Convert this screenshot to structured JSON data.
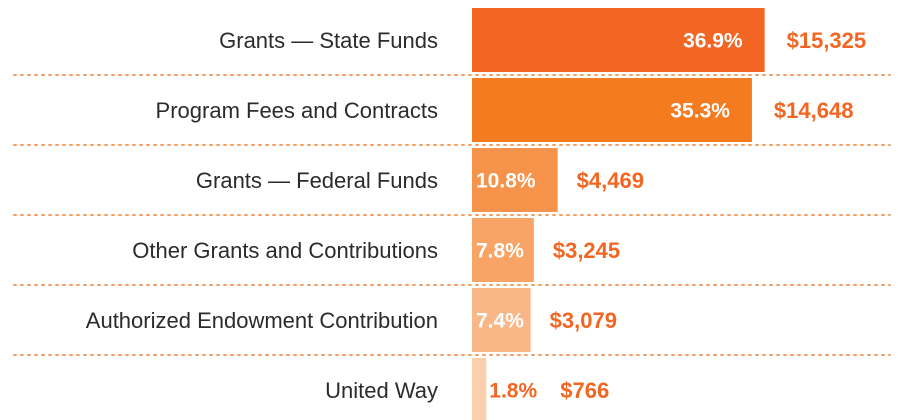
{
  "chart_data": {
    "type": "bar",
    "orientation": "horizontal",
    "categories": [
      "Grants — State Funds",
      "Program Fees and Contracts",
      "Grants — Federal Funds",
      "Other Grants and Contributions",
      "Authorized Endowment Contribution",
      "United Way"
    ],
    "values": [
      36.9,
      35.3,
      10.8,
      7.8,
      7.4,
      1.8
    ],
    "value_labels": [
      "36.9%",
      "35.3%",
      "10.8%",
      "7.8%",
      "7.4%",
      "1.8%"
    ],
    "amounts": [
      15325,
      14648,
      4469,
      3245,
      3079,
      766
    ],
    "amount_labels": [
      "$15,325",
      "$14,648",
      "$4,469",
      "$3,245",
      "$3,079",
      "$766"
    ],
    "colors": [
      "#f26522",
      "#f47b20",
      "#f6934a",
      "#f7a466",
      "#f9b787",
      "#fbcfac"
    ]
  }
}
